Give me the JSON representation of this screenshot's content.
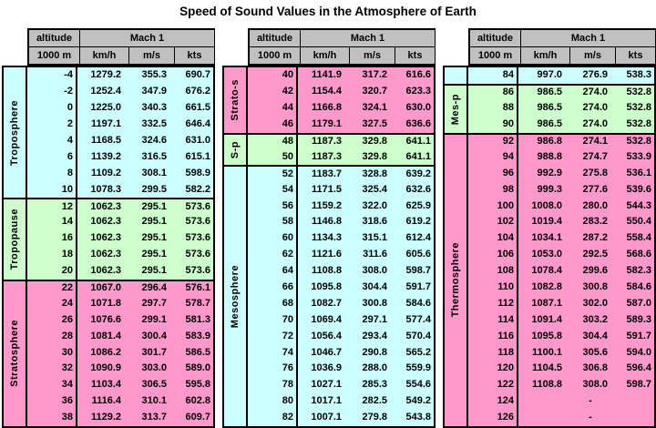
{
  "title": "Speed of Sound Values in the Atmosphere of Earth",
  "header": {
    "altitude": "altitude",
    "altitude_unit": "1000 m",
    "mach": "Mach 1",
    "units": [
      "km/h",
      "m/s",
      "kts"
    ]
  },
  "colors": {
    "cyan": "#CCFFFF",
    "green": "#CCFFCC",
    "pink": "#FF99CC",
    "header_bg": "#C0C0C0",
    "border": "#000000"
  },
  "chart_data": {
    "type": "table",
    "title": "Speed of Sound Values in the Atmosphere of Earth",
    "columns": [
      "altitude 1000 m",
      "Mach 1 km/h",
      "Mach 1 m/s",
      "Mach 1 kts"
    ],
    "panels": [
      {
        "name": "left",
        "sections": [
          {
            "label": "Troposphere",
            "color": "cyan",
            "rows": [
              [
                "-4",
                "1279.2",
                "355.3",
                "690.7"
              ],
              [
                "-2",
                "1252.4",
                "347.9",
                "676.2"
              ],
              [
                "0",
                "1225.0",
                "340.3",
                "661.5"
              ],
              [
                "2",
                "1197.1",
                "332.5",
                "646.4"
              ],
              [
                "4",
                "1168.5",
                "324.6",
                "631.0"
              ],
              [
                "6",
                "1139.2",
                "316.5",
                "615.1"
              ],
              [
                "8",
                "1109.2",
                "308.1",
                "598.9"
              ],
              [
                "10",
                "1078.3",
                "299.5",
                "582.2"
              ]
            ]
          },
          {
            "label": "Tropopause",
            "color": "green",
            "rows": [
              [
                "12",
                "1062.3",
                "295.1",
                "573.6"
              ],
              [
                "14",
                "1062.3",
                "295.1",
                "573.6"
              ],
              [
                "16",
                "1062.3",
                "295.1",
                "573.6"
              ],
              [
                "18",
                "1062.3",
                "295.1",
                "573.6"
              ],
              [
                "20",
                "1062.3",
                "295.1",
                "573.6"
              ]
            ]
          },
          {
            "label": "Stratosphere",
            "color": "pink",
            "rows": [
              [
                "22",
                "1067.0",
                "296.4",
                "576.1"
              ],
              [
                "24",
                "1071.8",
                "297.7",
                "578.7"
              ],
              [
                "26",
                "1076.6",
                "299.1",
                "581.3"
              ],
              [
                "28",
                "1081.4",
                "300.4",
                "583.9"
              ],
              [
                "30",
                "1086.2",
                "301.7",
                "586.5"
              ],
              [
                "32",
                "1090.9",
                "303.0",
                "589.0"
              ],
              [
                "34",
                "1103.4",
                "306.5",
                "595.8"
              ],
              [
                "36",
                "1116.4",
                "310.1",
                "602.8"
              ],
              [
                "38",
                "1129.2",
                "313.7",
                "609.7"
              ]
            ]
          }
        ]
      },
      {
        "name": "middle",
        "sections": [
          {
            "label": "Strato-s",
            "color": "pink",
            "rows": [
              [
                "40",
                "1141.9",
                "317.2",
                "616.6"
              ],
              [
                "42",
                "1154.4",
                "320.7",
                "623.3"
              ],
              [
                "44",
                "1166.8",
                "324.1",
                "630.0"
              ],
              [
                "46",
                "1179.1",
                "327.5",
                "636.6"
              ]
            ]
          },
          {
            "label": "S-p",
            "color": "green",
            "rows": [
              [
                "48",
                "1187.3",
                "329.8",
                "641.1"
              ],
              [
                "50",
                "1187.3",
                "329.8",
                "641.1"
              ]
            ]
          },
          {
            "label": "Mesosphere",
            "color": "cyan",
            "rows": [
              [
                "52",
                "1183.7",
                "328.8",
                "639.2"
              ],
              [
                "54",
                "1171.5",
                "325.4",
                "632.6"
              ],
              [
                "56",
                "1159.2",
                "322.0",
                "625.9"
              ],
              [
                "58",
                "1146.8",
                "318.6",
                "619.2"
              ],
              [
                "60",
                "1134.3",
                "315.1",
                "612.4"
              ],
              [
                "62",
                "1121.6",
                "311.6",
                "605.6"
              ],
              [
                "64",
                "1108.8",
                "308.0",
                "598.7"
              ],
              [
                "66",
                "1095.8",
                "304.4",
                "591.7"
              ],
              [
                "68",
                "1082.7",
                "300.8",
                "584.6"
              ],
              [
                "70",
                "1069.4",
                "297.1",
                "577.4"
              ],
              [
                "72",
                "1056.4",
                "293.4",
                "570.4"
              ],
              [
                "74",
                "1046.7",
                "290.8",
                "565.2"
              ],
              [
                "76",
                "1036.9",
                "288.0",
                "559.9"
              ],
              [
                "78",
                "1027.1",
                "285.3",
                "554.6"
              ],
              [
                "80",
                "1017.1",
                "282.5",
                "549.2"
              ],
              [
                "82",
                "1007.1",
                "279.8",
                "543.8"
              ]
            ]
          }
        ]
      },
      {
        "name": "right",
        "sections": [
          {
            "label": "",
            "color": "cyan",
            "rows": [
              [
                "84",
                "997.0",
                "276.9",
                "538.3"
              ]
            ]
          },
          {
            "label": "Mes-p",
            "color": "green",
            "rows": [
              [
                "86",
                "986.5",
                "274.0",
                "532.8"
              ],
              [
                "88",
                "986.5",
                "274.0",
                "532.8"
              ],
              [
                "90",
                "986.5",
                "274.0",
                "532.8"
              ]
            ]
          },
          {
            "label": "Thermosphere",
            "color": "pink",
            "rows": [
              [
                "92",
                "986.8",
                "274.1",
                "532.8"
              ],
              [
                "94",
                "988.8",
                "274.7",
                "533.9"
              ],
              [
                "96",
                "992.9",
                "275.8",
                "536.1"
              ],
              [
                "98",
                "999.3",
                "277.6",
                "539.6"
              ],
              [
                "100",
                "1008.0",
                "280.0",
                "544.3"
              ],
              [
                "102",
                "1019.4",
                "283.2",
                "550.4"
              ],
              [
                "104",
                "1034.1",
                "287.2",
                "558.4"
              ],
              [
                "106",
                "1053.0",
                "292.5",
                "568.6"
              ],
              [
                "108",
                "1078.4",
                "299.6",
                "582.3"
              ],
              [
                "110",
                "1082.8",
                "300.8",
                "584.6"
              ],
              [
                "112",
                "1087.1",
                "302.0",
                "587.0"
              ],
              [
                "114",
                "1091.4",
                "303.2",
                "589.3"
              ],
              [
                "116",
                "1095.8",
                "304.4",
                "591.7"
              ],
              [
                "118",
                "1100.1",
                "305.6",
                "594.0"
              ],
              [
                "120",
                "1104.5",
                "306.8",
                "596.4"
              ],
              [
                "122",
                "1108.8",
                "308.0",
                "598.7"
              ],
              [
                "124",
                "",
                "-",
                ""
              ],
              [
                "126",
                "",
                "-",
                ""
              ]
            ]
          }
        ]
      }
    ]
  }
}
